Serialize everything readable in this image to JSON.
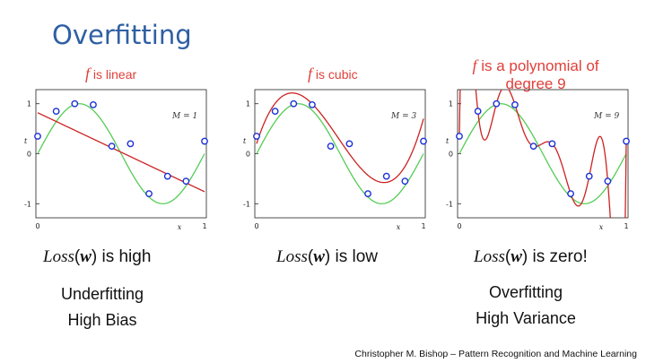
{
  "title": "Overfitting",
  "panels": [
    {
      "caption_f": "f",
      "caption_rest": " is linear",
      "model_label": "M = 1",
      "loss_prefix": "Loss",
      "loss_arg": "w",
      "loss_suffix": " is high"
    },
    {
      "caption_f": "f",
      "caption_rest": " is cubic",
      "model_label": "M = 3",
      "loss_prefix": "Loss",
      "loss_arg": "w",
      "loss_suffix": " is low"
    },
    {
      "caption_f": "f",
      "caption_rest": " is a polynomial of",
      "caption_line2": "degree 9",
      "model_label": "M = 9",
      "loss_prefix": "Loss",
      "loss_arg": "w",
      "loss_suffix": " is zero!"
    }
  ],
  "axis_labels": {
    "x": "x",
    "t": "t",
    "y_ticks": [
      "1",
      "0",
      "-1"
    ],
    "x_ticks": [
      "0",
      "1"
    ]
  },
  "notes": {
    "left": {
      "line1": "Underfitting",
      "line2": "High Bias"
    },
    "right": {
      "line1": "Overfitting",
      "line2": "High Variance"
    }
  },
  "credit": "Christopher M. Bishop – Pattern Recognition and Machine Learning",
  "colors": {
    "title": "#2e5fa3",
    "true_curve": "#55cc55",
    "fit_curve": "#cc2222",
    "points": "#1a2fd6",
    "caption": "#e0403a"
  },
  "chart_data": {
    "type": "scatter",
    "x": [
      0,
      0.111,
      0.222,
      0.333,
      0.444,
      0.556,
      0.667,
      0.778,
      0.889,
      1.0
    ],
    "series": [
      {
        "values": [
          0.35,
          0.85,
          1.0,
          0.98,
          0.15,
          0.2,
          -0.8,
          -0.45,
          -0.55,
          0.25
        ]
      }
    ],
    "xlim": [
      0,
      1
    ],
    "ylim": [
      -1.5,
      1.5
    ]
  }
}
